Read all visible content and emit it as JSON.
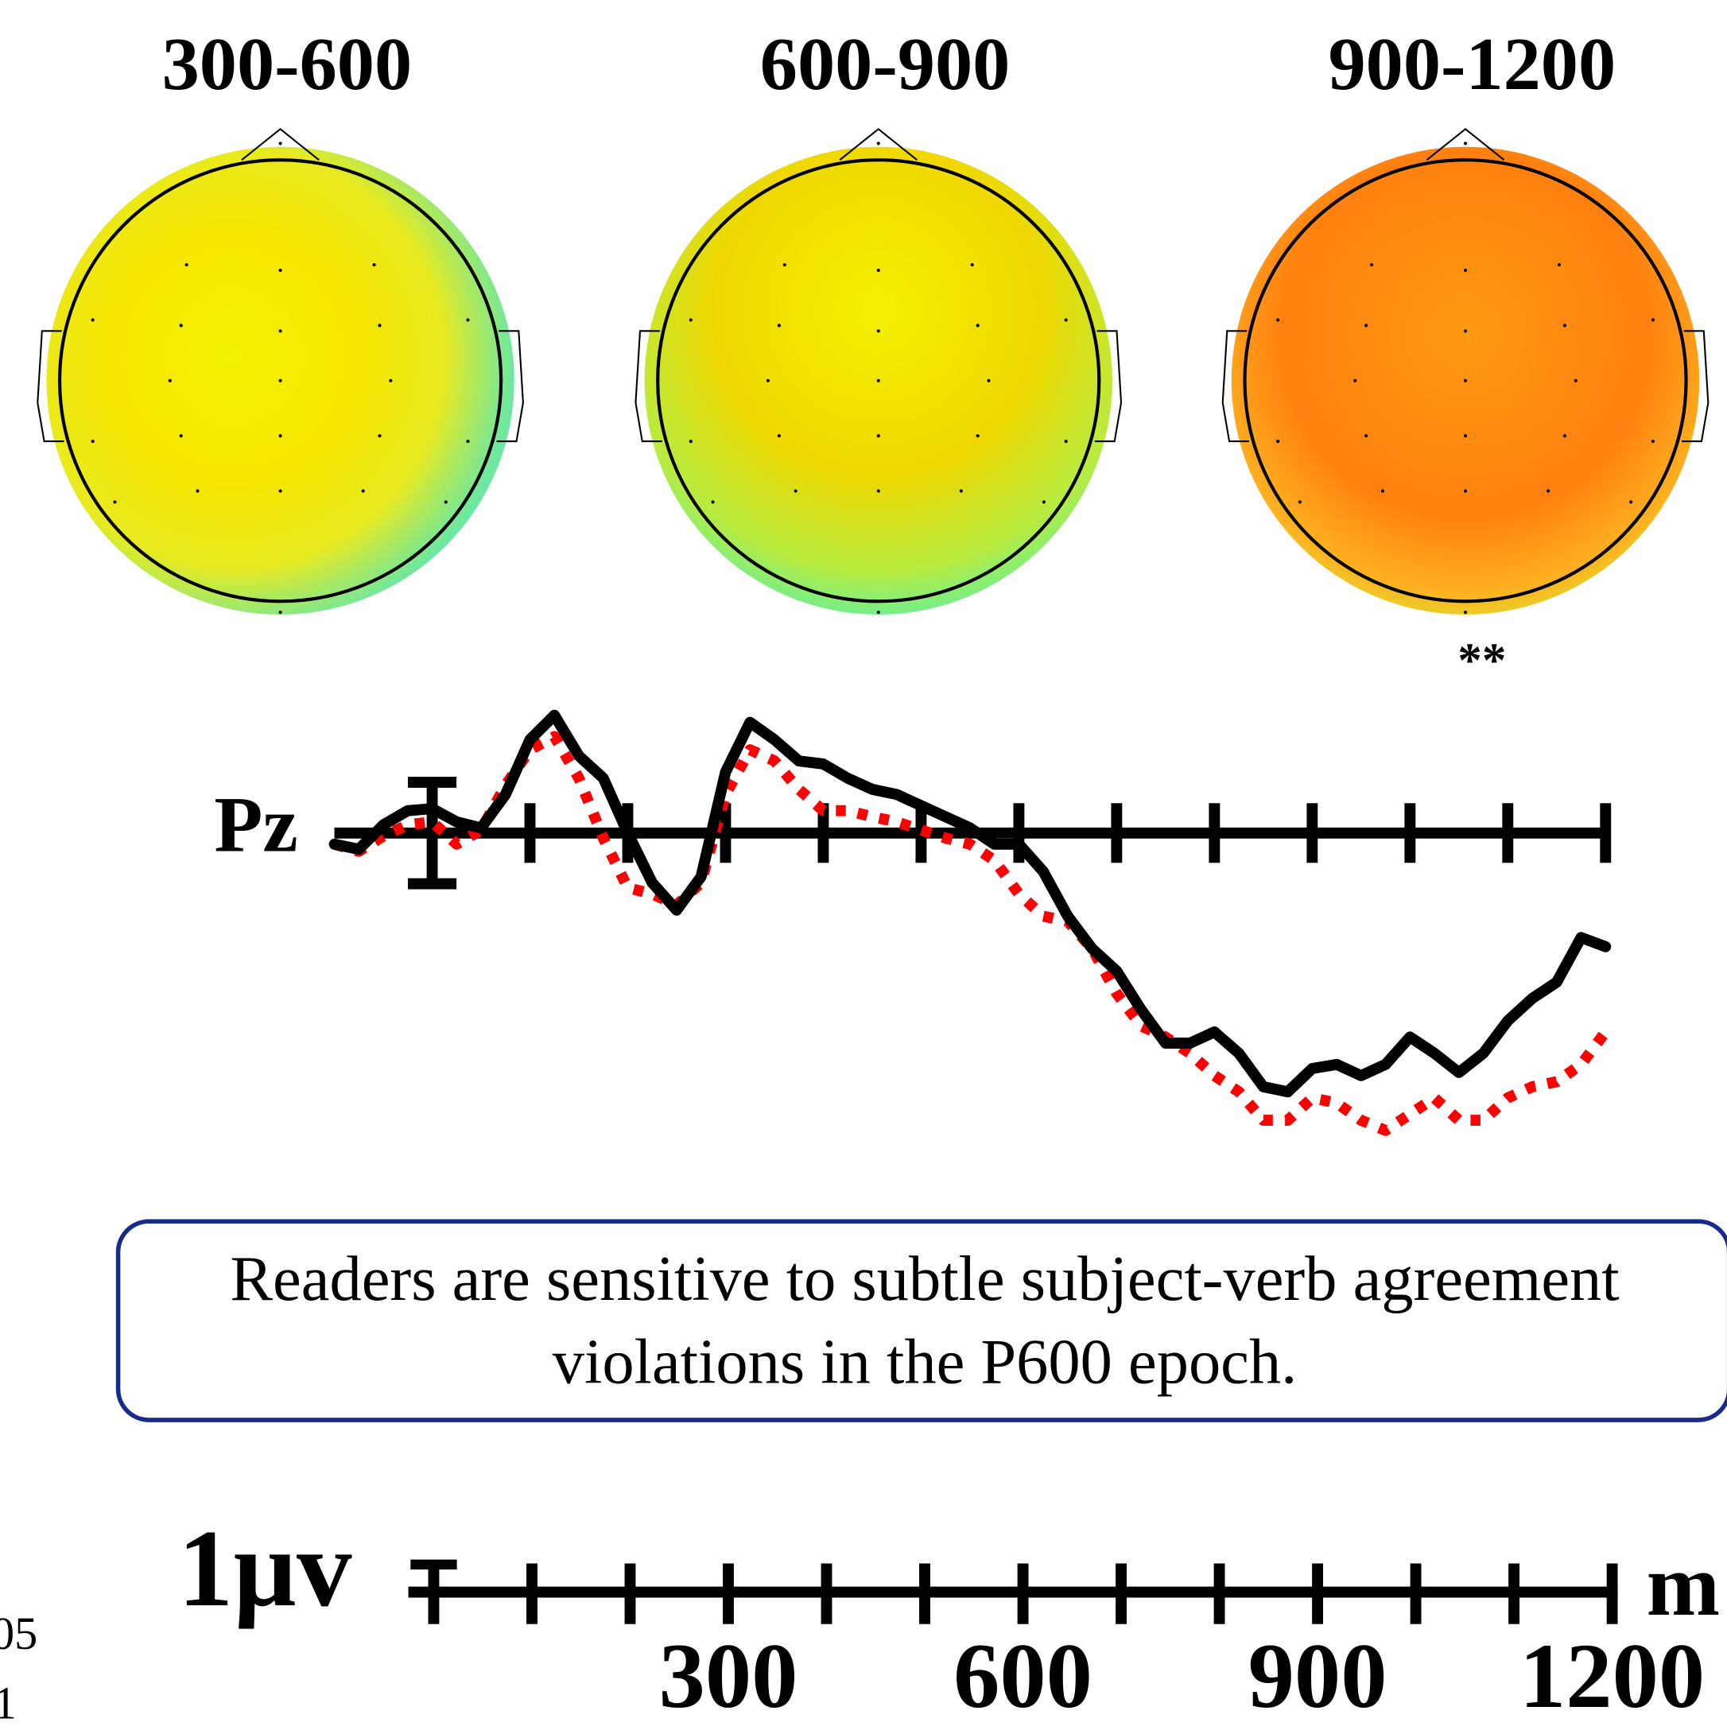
{
  "topomaps": [
    {
      "title": "300-600"
    },
    {
      "title": "600-900"
    },
    {
      "title": "900-1200"
    }
  ],
  "annotation": "**",
  "chart_data": {
    "type": "line",
    "label": "Pz",
    "x": [
      -100,
      -75,
      -50,
      -25,
      0,
      25,
      50,
      75,
      100,
      125,
      150,
      175,
      200,
      225,
      250,
      275,
      300,
      325,
      350,
      375,
      400,
      425,
      450,
      475,
      500,
      525,
      550,
      575,
      600,
      625,
      650,
      675,
      700,
      725,
      750,
      775,
      800,
      825,
      850,
      875,
      900,
      925,
      950,
      975,
      1000,
      1025,
      1050,
      1075,
      1100,
      1125,
      1150,
      1175,
      1200
    ],
    "series": [
      {
        "color": "#000000",
        "style": "solid",
        "values": [
          0.11,
          0.16,
          -0.08,
          -0.22,
          -0.24,
          -0.11,
          -0.05,
          -0.38,
          -0.92,
          -1.16,
          -0.76,
          -0.54,
          0,
          0.49,
          0.76,
          0.43,
          -0.6,
          -1.09,
          -0.92,
          -0.71,
          -0.68,
          -0.54,
          -0.43,
          -0.38,
          -0.27,
          -0.16,
          -0.05,
          0.11,
          0.11,
          0.38,
          0.82,
          1.14,
          1.36,
          1.74,
          2.07,
          2.07,
          1.96,
          2.17,
          2.5,
          2.55,
          2.32,
          2.28,
          2.39,
          2.28,
          2.01,
          2.17,
          2.36,
          2.17,
          1.85,
          1.63,
          1.47,
          1.03,
          1.12
        ]
      },
      {
        "color": "#ff0000",
        "style": "dotted",
        "values": [
          0.11,
          0.18,
          0.03,
          -0.08,
          -0.11,
          0.11,
          -0.03,
          -0.47,
          -0.82,
          -0.95,
          -0.54,
          0.05,
          0.54,
          0.6,
          0.71,
          0.49,
          -0.38,
          -0.82,
          -0.71,
          -0.43,
          -0.22,
          -0.22,
          -0.16,
          -0.11,
          -0.03,
          0.05,
          0.11,
          0.27,
          0.6,
          0.82,
          0.87,
          1.14,
          1.58,
          1.9,
          2.01,
          2.17,
          2.39,
          2.55,
          2.83,
          2.83,
          2.61,
          2.66,
          2.83,
          2.93,
          2.77,
          2.61,
          2.83,
          2.83,
          2.61,
          2.5,
          2.45,
          2.28,
          1.96
        ]
      }
    ],
    "xlim": [
      -100,
      1200
    ],
    "xticks": [
      100,
      200,
      300,
      400,
      500,
      600,
      700,
      800,
      900,
      1000,
      1100,
      1200
    ],
    "ylim": [
      -1.5,
      3.5
    ],
    "y_inverted": true,
    "calibration": 1
  },
  "scale_bar": {
    "amplitude_label": "1µv",
    "unit_label": "m",
    "ticks": [
      100,
      200,
      300,
      400,
      500,
      600,
      700,
      800,
      900,
      1000,
      1100,
      1200
    ],
    "tick_labels": [
      300,
      600,
      900,
      1200
    ]
  },
  "callout": [
    "Readers are sensitive to subtle subject-verb agreement",
    "violations in the P600 epoch."
  ],
  "margin_text": [
    "05",
    "1"
  ]
}
